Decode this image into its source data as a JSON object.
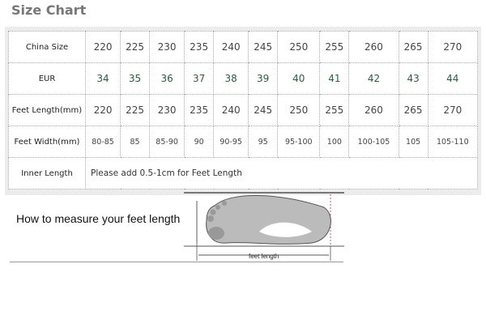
{
  "title": "Size Chart",
  "table": {
    "rows": [
      {
        "label": "China Size",
        "values": [
          "220",
          "225",
          "230",
          "235",
          "240",
          "245",
          "250",
          "255",
          "260",
          "265",
          "270"
        ]
      },
      {
        "label": "EUR",
        "values": [
          "34",
          "35",
          "36",
          "37",
          "38",
          "39",
          "40",
          "41",
          "42",
          "43",
          "44"
        ]
      },
      {
        "label": "Feet Length(mm)",
        "values": [
          "220",
          "225",
          "230",
          "235",
          "240",
          "245",
          "250",
          "255",
          "260",
          "265",
          "270"
        ]
      },
      {
        "label": "Feet Width(mm)",
        "values": [
          "80-85",
          "85",
          "85-90",
          "90",
          "90-95",
          "95",
          "95-100",
          "100",
          "100-105",
          "105",
          "105-110"
        ]
      }
    ],
    "inner": {
      "label": "Inner Length",
      "note": "Please add 0.5-1cm for Feet Length"
    }
  },
  "measure": {
    "heading": "How to measure your feet length",
    "diagram_label": "feet length"
  },
  "colors": {
    "eur_text": "#2e5a3e",
    "title": "#777777"
  }
}
